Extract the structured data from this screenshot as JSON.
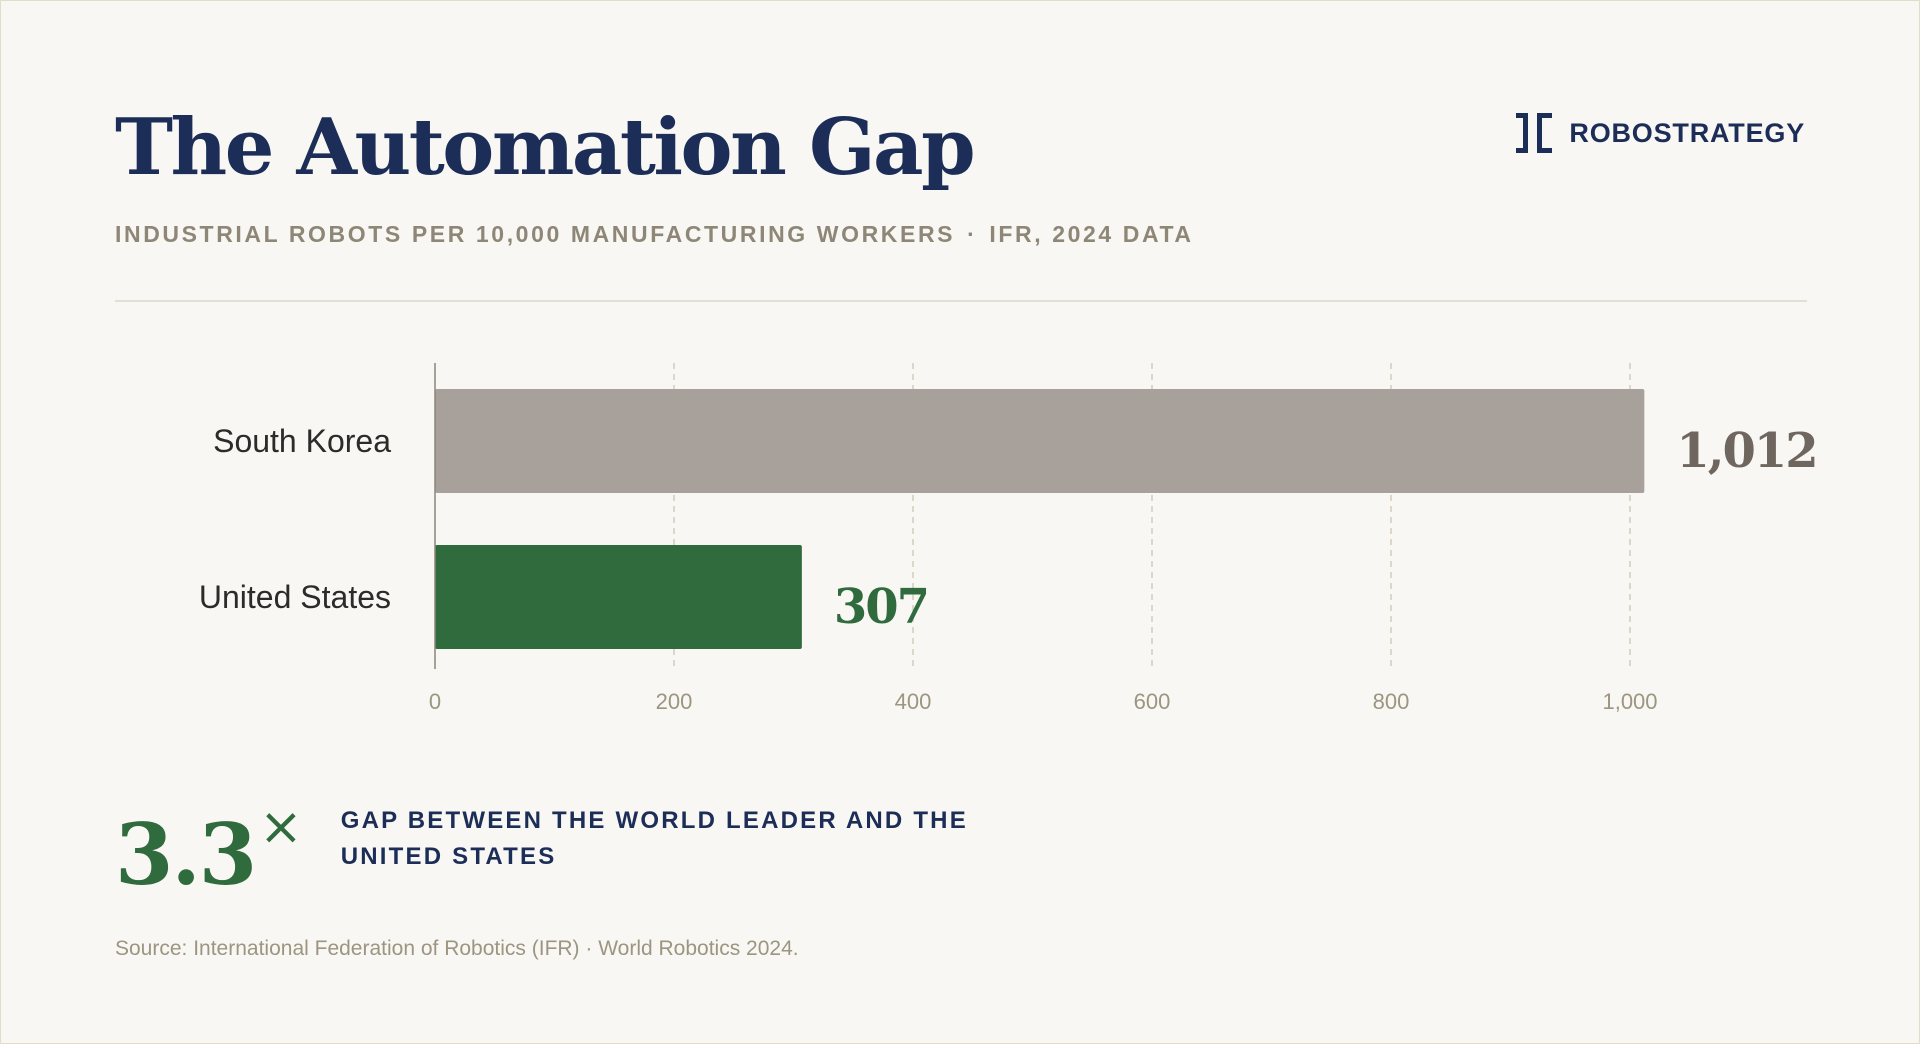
{
  "title": "The Automation Gap",
  "subtitle": {
    "metric": "INDUSTRIAL ROBOTS PER 10,000 MANUFACTURING WORKERS",
    "separator": "·",
    "source_tag": "IFR, 2024 DATA"
  },
  "brand": {
    "name": "ROBOSTRATEGY",
    "icon": "bracket-logo-icon"
  },
  "colors": {
    "navy": "#1c2e57",
    "green": "#306b3e",
    "gray_bar": "#a8a19b",
    "gray_value": "#6f675f",
    "axis_label": "#9c9581",
    "grid": "#d3ccbe"
  },
  "chart_data": {
    "type": "bar",
    "orientation": "horizontal",
    "categories": [
      "South Korea",
      "United States"
    ],
    "values": [
      1012,
      307
    ],
    "value_labels": [
      "1,012",
      "307"
    ],
    "bar_colors": [
      "#a8a19b",
      "#306b3e"
    ],
    "label_colors": [
      "#6f675f",
      "#306b3e"
    ],
    "xlim": [
      0,
      1000
    ],
    "xticks": [
      0,
      200,
      400,
      600,
      800,
      1000
    ],
    "xtick_labels": [
      "0",
      "200",
      "400",
      "600",
      "800",
      "1,000"
    ],
    "grid": "vertical-dashed",
    "title": "",
    "xlabel": "",
    "ylabel": ""
  },
  "stat": {
    "number": "3.3",
    "suffix": "×",
    "description": "GAP BETWEEN THE WORLD LEADER AND THE UNITED STATES"
  },
  "source": "Source: International Federation of Robotics (IFR) · World Robotics 2024."
}
